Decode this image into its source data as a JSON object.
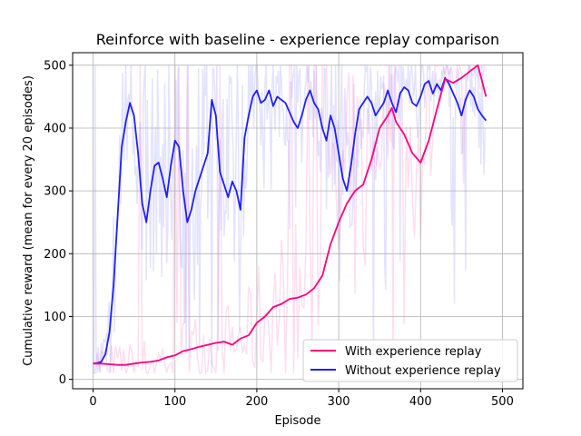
{
  "chart_data": {
    "type": "line",
    "title": "Reinforce with baseline  - experience replay comparison",
    "xlabel": "Episode",
    "ylabel": "Cumulative reward (mean for every 20 episodes)",
    "xlim": [
      -25,
      525
    ],
    "ylim": [
      -15,
      520
    ],
    "xticks": [
      0,
      100,
      200,
      300,
      400,
      500
    ],
    "yticks": [
      0,
      100,
      200,
      300,
      400,
      500
    ],
    "grid": true,
    "legend_position": "lower-right",
    "series": [
      {
        "name": "With experience replay",
        "color": "#ff007f",
        "x": [
          0,
          10,
          20,
          30,
          40,
          50,
          60,
          70,
          80,
          90,
          100,
          110,
          120,
          130,
          140,
          150,
          160,
          170,
          180,
          190,
          200,
          210,
          220,
          230,
          240,
          250,
          260,
          270,
          280,
          290,
          300,
          310,
          320,
          330,
          340,
          350,
          360,
          365,
          370,
          380,
          390,
          400,
          410,
          420,
          430,
          440,
          450,
          460,
          470,
          480
        ],
        "values": [
          25,
          25,
          24,
          23,
          23,
          25,
          27,
          28,
          30,
          35,
          38,
          45,
          48,
          52,
          55,
          58,
          60,
          55,
          65,
          70,
          90,
          100,
          115,
          120,
          128,
          130,
          135,
          145,
          165,
          215,
          250,
          280,
          300,
          310,
          350,
          400,
          420,
          432,
          410,
          390,
          360,
          345,
          380,
          430,
          478,
          472,
          480,
          490,
          500,
          450
        ]
      },
      {
        "name": "Without experience replay",
        "color": "#1f1fff",
        "x": [
          0,
          5,
          10,
          15,
          20,
          25,
          30,
          35,
          40,
          45,
          50,
          55,
          60,
          65,
          70,
          75,
          80,
          85,
          90,
          95,
          100,
          105,
          110,
          115,
          120,
          125,
          130,
          135,
          140,
          145,
          150,
          155,
          160,
          165,
          170,
          175,
          180,
          185,
          190,
          195,
          200,
          205,
          210,
          215,
          220,
          225,
          230,
          235,
          240,
          245,
          250,
          255,
          260,
          265,
          270,
          275,
          280,
          285,
          290,
          295,
          300,
          305,
          310,
          315,
          320,
          325,
          330,
          335,
          340,
          345,
          350,
          355,
          360,
          365,
          370,
          375,
          380,
          385,
          390,
          395,
          400,
          405,
          410,
          415,
          420,
          425,
          430,
          435,
          440,
          445,
          450,
          455,
          460,
          465,
          470,
          475,
          480
        ],
        "values": [
          25,
          26,
          28,
          40,
          75,
          150,
          260,
          370,
          410,
          440,
          420,
          360,
          280,
          250,
          300,
          340,
          345,
          320,
          290,
          340,
          380,
          370,
          300,
          250,
          270,
          300,
          320,
          340,
          360,
          445,
          420,
          330,
          310,
          290,
          315,
          300,
          270,
          385,
          420,
          450,
          460,
          440,
          445,
          460,
          435,
          450,
          445,
          440,
          425,
          410,
          400,
          420,
          445,
          460,
          440,
          430,
          400,
          380,
          420,
          400,
          360,
          320,
          300,
          340,
          390,
          430,
          440,
          450,
          440,
          420,
          430,
          440,
          460,
          440,
          425,
          455,
          465,
          460,
          440,
          435,
          450,
          470,
          475,
          455,
          470,
          460,
          480,
          470,
          455,
          440,
          420,
          445,
          460,
          450,
          430,
          420,
          412
        ]
      }
    ]
  }
}
